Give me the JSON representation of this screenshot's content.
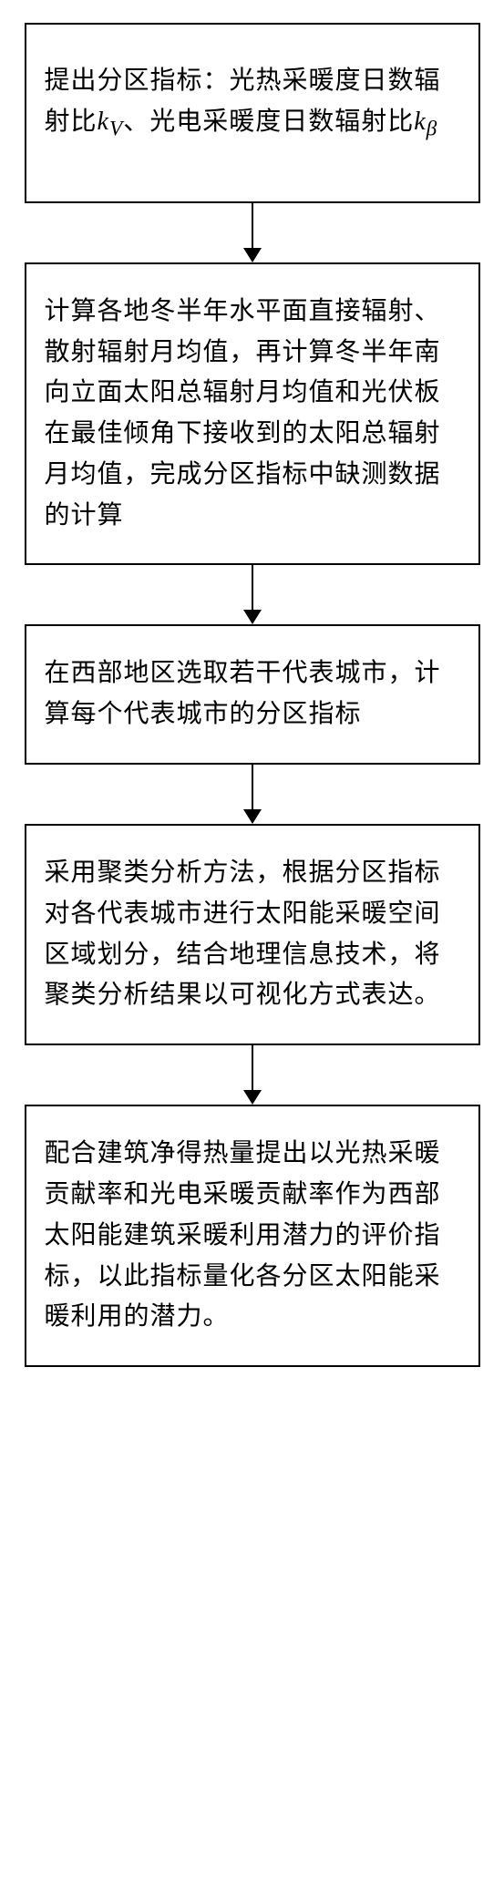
{
  "flow": {
    "boxes": [
      {
        "prefix": "提出分区指标：光热采暖度日数辐射比",
        "k1var": "k",
        "k1sub": "V",
        "mid": "、光电采暖度日数辐射比",
        "k2var": "k",
        "k2sub": "β",
        "suffix": ""
      },
      {
        "text": "计算各地冬半年水平面直接辐射、散射辐射月均值，再计算冬半年南向立面太阳总辐射月均值和光伏板在最佳倾角下接收到的太阳总辐射月均值，完成分区指标中缺测数据的计算"
      },
      {
        "text": "在西部地区选取若干代表城市，计算每个代表城市的分区指标"
      },
      {
        "text": "采用聚类分析方法，根据分区指标对各代表城市进行太阳能采暖空间区域划分，结合地理信息技术，将聚类分析结果以可视化方式表达。"
      },
      {
        "text": "配合建筑净得热量提出以光热采暖贡献率和光电采暖贡献率作为西部太阳能建筑采暖利用潜力的评价指标，以此指标量化各分区太阳能采暖利用的潜力。"
      }
    ],
    "style": {
      "border_color": "#000000",
      "border_width": 2,
      "background": "#ffffff",
      "font_size": 28,
      "text_color": "#000000",
      "arrow_line_height": 50,
      "arrow_head_size": 16
    }
  }
}
